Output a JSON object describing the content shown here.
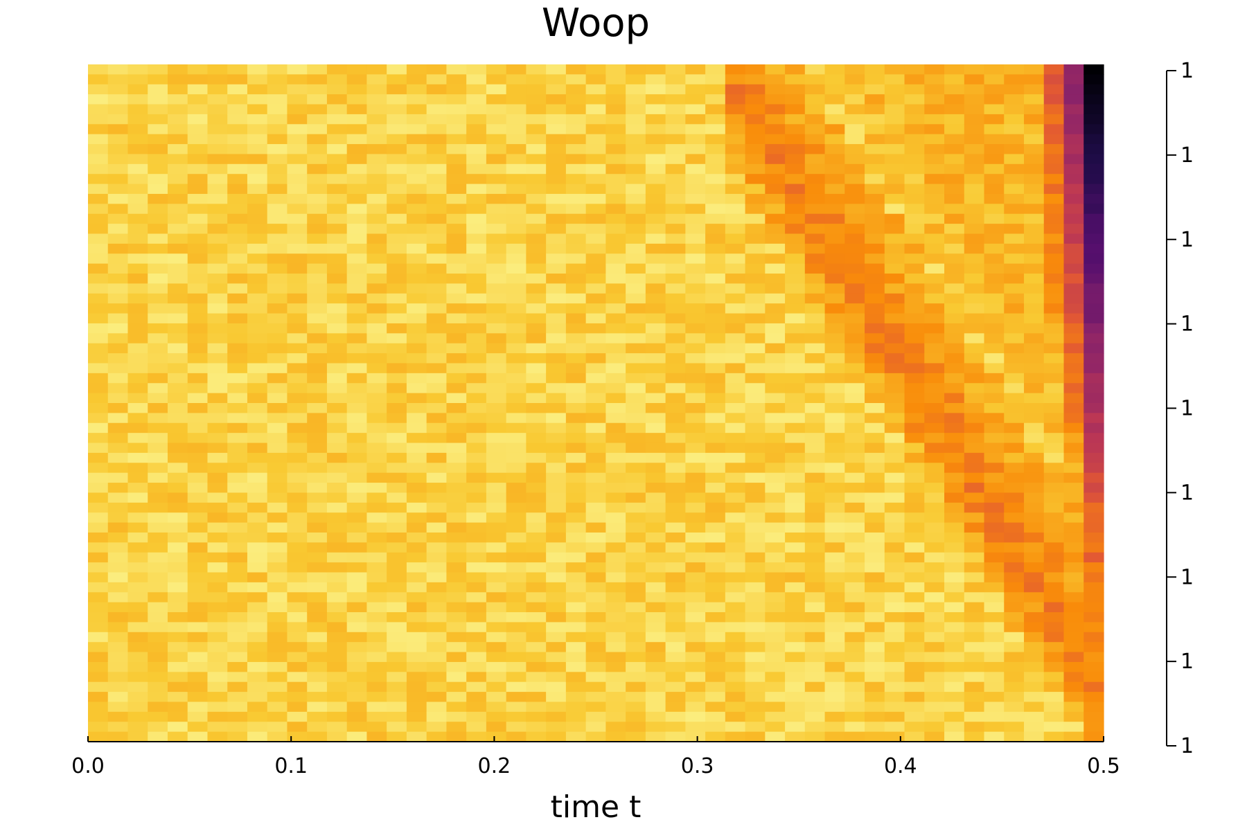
{
  "chart_data": {
    "type": "heatmap",
    "title": "Woop",
    "xlabel": "time t",
    "ylabel": "",
    "x_ticks": [
      "0.0",
      "0.1",
      "0.2",
      "0.3",
      "0.4",
      "0.5"
    ],
    "x_tick_values": [
      0.0,
      0.1,
      0.2,
      0.3,
      0.4,
      0.5
    ],
    "xlim": [
      0.0,
      0.5
    ],
    "grid": false,
    "legend": "none",
    "colormap": "inferno",
    "colorbar": {
      "tick_labels": [
        "1",
        "1",
        "1",
        "1",
        "1",
        "1",
        "1",
        "1",
        "1"
      ]
    },
    "n_columns": 51,
    "n_rows": 68,
    "pattern": {
      "description_values": {
        "base_intensity": 0.9,
        "noise_amplitude": 0.06,
        "band_start_time": 0.31,
        "band_end_time": 0.5,
        "band_slope_rows_per_time": 330,
        "band_min_intensity": 0.72,
        "band_width_columns": 2.2,
        "edge_dark_intensity": 0.0
      }
    }
  }
}
